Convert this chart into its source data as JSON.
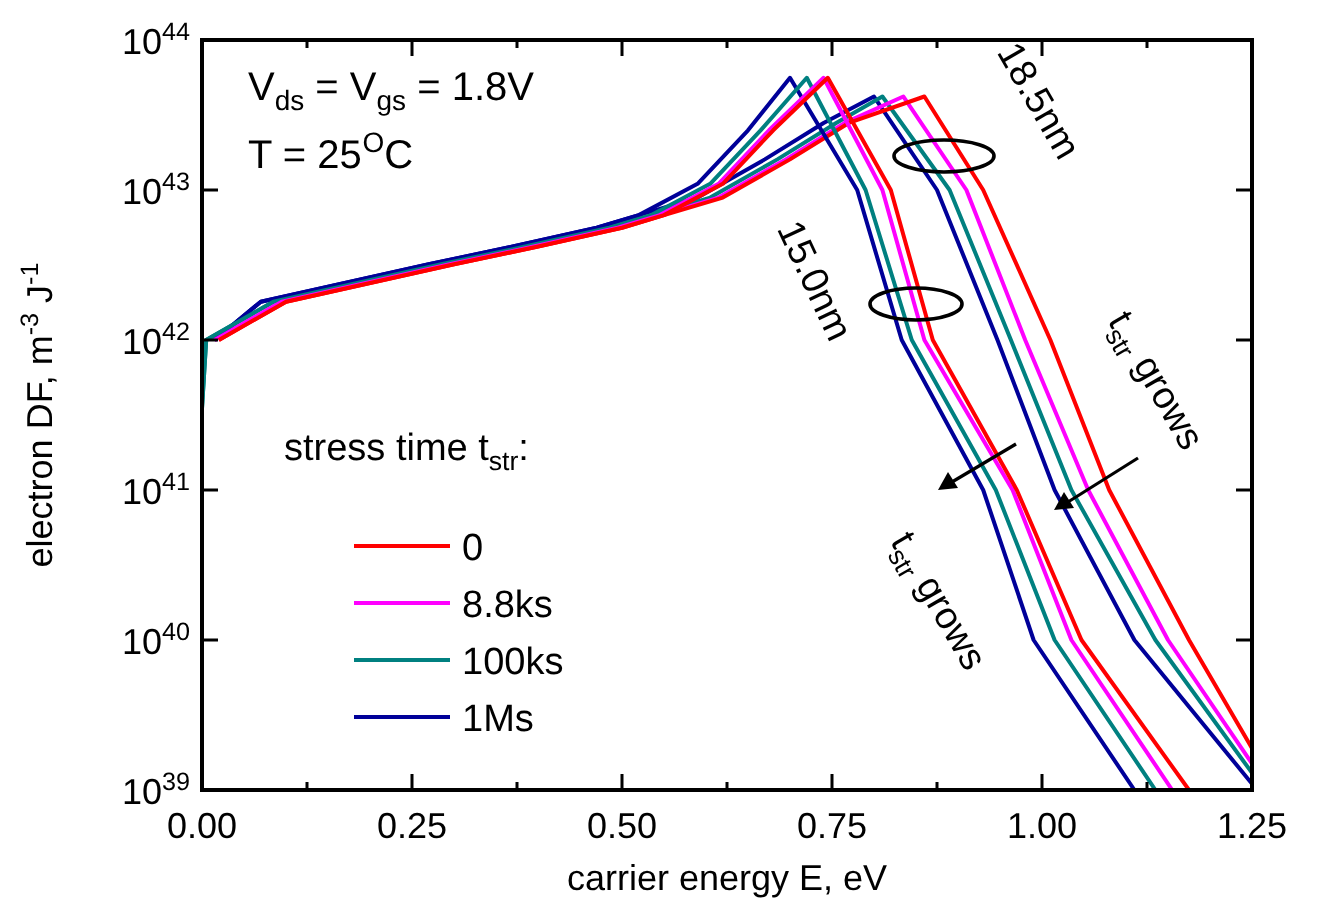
{
  "chart_data": {
    "type": "line",
    "xlabel": "carrier energy E, eV",
    "ylabel": "electron DF, m$^{-3}$ J$^{-1}$",
    "log": "y",
    "legend": "bottom left",
    "legend_title": "stress time t$_{str}$:",
    "xlim": [
      0,
      1.25
    ],
    "ylim": [
      1e+39,
      1e+44
    ],
    "xticks": [
      {
        "value": 0,
        "label": "0.00"
      },
      {
        "value": 0.125,
        "label": null
      },
      {
        "value": 0.25,
        "label": "0.25"
      },
      {
        "value": 0.375,
        "label": null
      },
      {
        "value": 0.5,
        "label": "0.50"
      },
      {
        "value": 0.625,
        "label": null
      },
      {
        "value": 0.75,
        "label": "0.75"
      },
      {
        "value": 0.875,
        "label": null
      },
      {
        "value": 1,
        "label": "1.00"
      },
      {
        "value": 1.125,
        "label": null
      },
      {
        "value": 1.25,
        "label": "1.25"
      }
    ],
    "yticks": [
      {
        "value": 1e+39,
        "label": "10$^{39}$"
      },
      {
        "value": 1e+40,
        "label": "10$^{40}$"
      },
      {
        "value": 1e+41,
        "label": "10$^{41}$"
      },
      {
        "value": 1e+42,
        "label": "10$^{42}$"
      },
      {
        "value": 1e+43,
        "label": "10$^{43}$"
      },
      {
        "value": 1e+44,
        "label": "10$^{44}$"
      }
    ],
    "series": [
      {
        "name": "0",
        "color": "#ff0000",
        "x": [
          0.02,
          0.1,
          0.2,
          0.3,
          0.4,
          0.5,
          0.55,
          0.62,
          0.68,
          0.745,
          0.82,
          0.87,
          0.97,
          1.047,
          1.175
        ],
        "values": [
          1e+42,
          1.8e+42,
          2.4e+42,
          3.2e+42,
          4.2e+42,
          5.6e+42,
          6.8e+42,
          1.1e+43,
          2.5e+43,
          5.6e+43,
          1e+43,
          1e+42,
          1e+41,
          1e+40,
          1e+39
        ]
      },
      {
        "name": "8.8ks",
        "color": "#ff00ff",
        "x": [
          0.015,
          0.095,
          0.195,
          0.295,
          0.395,
          0.495,
          0.545,
          0.615,
          0.675,
          0.74,
          0.81,
          0.86,
          0.965,
          1.035,
          1.155
        ],
        "values": [
          1e+42,
          1.8e+42,
          2.4e+42,
          3.2e+42,
          4.2e+42,
          5.6e+42,
          6.8e+42,
          1.1e+43,
          2.5e+43,
          5.6e+43,
          1e+43,
          1e+42,
          1e+41,
          1e+40,
          1e+39
        ]
      },
      {
        "name": "100ks",
        "color": "#008080",
        "x": [
          0,
          0.005,
          0.085,
          0.185,
          0.285,
          0.385,
          0.485,
          0.535,
          0.605,
          0.665,
          0.72,
          0.79,
          0.845,
          0.945,
          1.015,
          1.135
        ],
        "values": [
          3.5e+41,
          1e+42,
          1.8e+42,
          2.4e+42,
          3.2e+42,
          4.2e+42,
          5.6e+42,
          6.8e+42,
          1.1e+43,
          2.5e+43,
          5.6e+43,
          1e+43,
          1e+42,
          1e+41,
          1e+40,
          1e+39
        ]
      },
      {
        "name": "1Ms",
        "color": "#000099",
        "x": [
          0.015,
          0.07,
          0.17,
          0.27,
          0.37,
          0.47,
          0.52,
          0.59,
          0.65,
          0.7,
          0.78,
          0.833,
          0.93,
          0.99,
          1.11
        ],
        "values": [
          1e+42,
          1.8e+42,
          2.4e+42,
          3.2e+42,
          4.2e+42,
          5.6e+42,
          6.8e+42,
          1.1e+43,
          2.5e+43,
          5.6e+43,
          1e+43,
          1e+42,
          1e+41,
          1e+40,
          1e+39
        ]
      },
      {
        "color": "#ff0000",
        "x": [
          0.02,
          0.1,
          0.2,
          0.3,
          0.4,
          0.5,
          0.55,
          0.62,
          0.7,
          0.77,
          0.86,
          0.93,
          1.01,
          1.08,
          1.175,
          1.25
        ],
        "values": [
          1e+42,
          1.8e+42,
          2.4e+42,
          3.2e+42,
          4.2e+42,
          5.6e+42,
          6.8e+42,
          8.9e+42,
          1.6e+43,
          2.8e+43,
          4.2e+43,
          1e+43,
          1e+42,
          1e+41,
          1e+40,
          1.9e+39
        ]
      },
      {
        "color": "#ff00ff",
        "x": [
          0.015,
          0.095,
          0.195,
          0.295,
          0.395,
          0.495,
          0.545,
          0.615,
          0.695,
          0.765,
          0.835,
          0.91,
          0.98,
          1.055,
          1.15,
          1.25
        ],
        "values": [
          1e+42,
          1.8e+42,
          2.4e+42,
          3.2e+42,
          4.2e+42,
          5.6e+42,
          6.8e+42,
          8.9e+42,
          1.6e+43,
          2.8e+43,
          4.2e+43,
          1e+43,
          1e+42,
          1e+41,
          1e+40,
          1.5e+39
        ]
      },
      {
        "color": "#008080",
        "x": [
          0,
          0.005,
          0.085,
          0.185,
          0.285,
          0.385,
          0.485,
          0.535,
          0.605,
          0.685,
          0.755,
          0.81,
          0.89,
          0.963,
          1.035,
          1.135,
          1.25
        ],
        "values": [
          3.5e+41,
          1e+42,
          1.8e+42,
          2.4e+42,
          3.2e+42,
          4.2e+42,
          5.6e+42,
          6.8e+42,
          8.9e+42,
          1.6e+43,
          2.8e+43,
          4.2e+43,
          1e+43,
          1e+42,
          1e+41,
          1e+40,
          1.3e+39
        ]
      },
      {
        "color": "#000099",
        "x": [
          0.015,
          0.07,
          0.17,
          0.27,
          0.37,
          0.47,
          0.52,
          0.59,
          0.67,
          0.74,
          0.8,
          0.875,
          0.947,
          1.015,
          1.11,
          1.25
        ],
        "values": [
          1e+42,
          1.8e+42,
          2.4e+42,
          3.2e+42,
          4.2e+42,
          5.6e+42,
          6.8e+42,
          8.9e+42,
          1.6e+43,
          2.8e+43,
          4.2e+43,
          1e+43,
          1e+42,
          1e+41,
          1e+40,
          1.1e+39
        ]
      }
    ],
    "annotations": [
      "V$_{ds}$ = V$_{gs}$ = 1.8V",
      "T = 25$^{O}$C",
      "18.5nm",
      "15.0nm",
      {
        "text": "t$_{str}$ grows",
        "x": 1.016,
        "y": 7.4e+40
      },
      "t$_{str}$ grows"
    ]
  }
}
